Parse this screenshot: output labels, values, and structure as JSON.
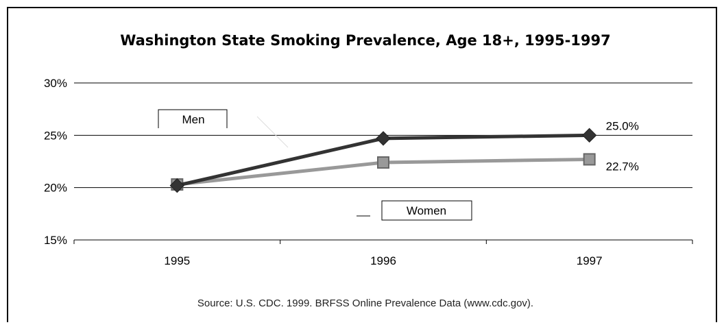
{
  "chart_data": {
    "type": "line",
    "title": "Washington State Smoking Prevalence, Age 18+, 1995-1997",
    "categories": [
      "1995",
      "1996",
      "1997"
    ],
    "ylim": [
      15,
      30
    ],
    "yticks": [
      "15%",
      "20%",
      "25%",
      "30%"
    ],
    "ytick_values": [
      15,
      20,
      25,
      30
    ],
    "grid": true,
    "series": [
      {
        "name": "Men",
        "values": [
          20.2,
          24.7,
          25.0
        ],
        "color": "#333333",
        "marker": "diamond",
        "end_label": "25.0%"
      },
      {
        "name": "Women",
        "values": [
          20.3,
          22.4,
          22.7
        ],
        "color": "#999999",
        "marker": "square",
        "end_label": "22.7%"
      }
    ],
    "source": "Source: U.S. CDC. 1999. BRFSS Online Prevalence Data (www.cdc.gov)."
  }
}
